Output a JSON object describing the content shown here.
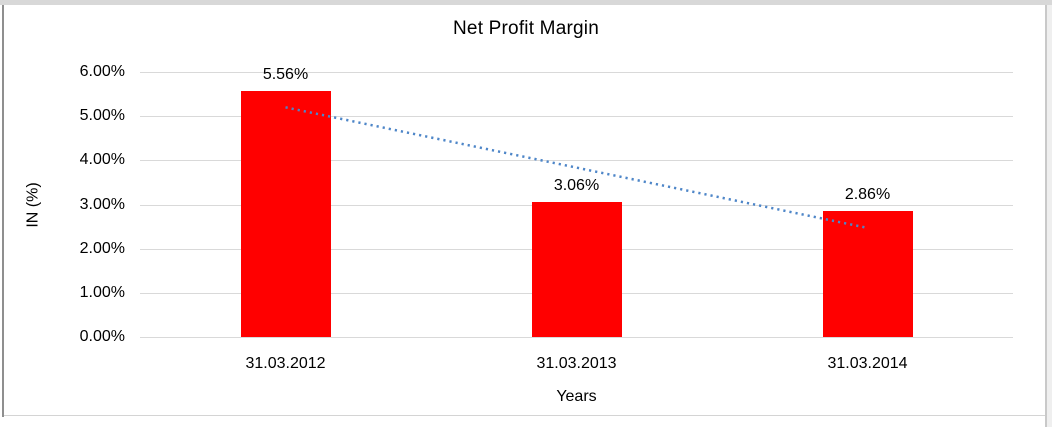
{
  "chart_data": {
    "type": "bar",
    "title": "Net Profit Margin",
    "xlabel": "Years",
    "ylabel": "IN (%)",
    "categories": [
      "31.03.2012",
      "31.03.2013",
      "31.03.2014"
    ],
    "values": [
      5.56,
      3.06,
      2.86
    ],
    "value_labels": [
      "5.56%",
      "3.06%",
      "2.86%"
    ],
    "y_ticks": [
      "6.00%",
      "5.00%",
      "4.00%",
      "3.00%",
      "2.00%",
      "1.00%",
      "0.00%"
    ],
    "ylim": [
      0,
      6
    ],
    "grid": true,
    "legend": "none",
    "bar_color": "#ff0000",
    "gridline_color": "#d9d9d9",
    "text_color": "#000000",
    "trendline": {
      "type": "linear",
      "style": "dotted",
      "color": "#4e86c8",
      "start_pct": 5.2,
      "end_pct": 2.47
    }
  }
}
